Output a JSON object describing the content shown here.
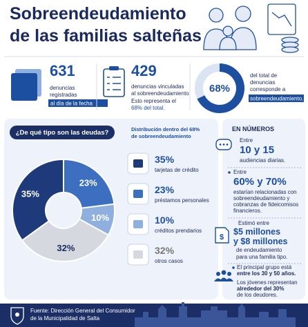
{
  "header": {
    "title_lines": [
      "Sobreendeudamiento",
      "de las familias salteñas"
    ]
  },
  "stats": [
    {
      "value": "631",
      "lines": [
        "denuncias",
        "registradas"
      ],
      "highlight": "al día de la fecha"
    },
    {
      "value": "429",
      "lines": [
        "denuncias vinculadas",
        "al sobreendeudamiento.",
        "Esto representa el"
      ],
      "highlight": "68% del total."
    },
    {
      "percent": 68,
      "label": "68%",
      "lines": [
        "del total de",
        "denuncias",
        "corresponde a"
      ],
      "highlight": "sobreendeudamiento."
    }
  ],
  "chart_data": {
    "type": "pie",
    "title": "¿De qué tipo son las deudas?",
    "subtitle": [
      "Distribución dentro del 68%",
      "de sobreendeudamiento"
    ],
    "categories": [
      "tarjetas de crédito",
      "préstamos personales",
      "créditos prendarios",
      "otros casos"
    ],
    "values": [
      35,
      23,
      10,
      32
    ],
    "value_labels": [
      "35%",
      "23%",
      "10%",
      "32%"
    ],
    "colors": [
      "#1e3a7b",
      "#3d6fc0",
      "#8fb0de",
      "#d5d8de"
    ]
  },
  "numbers": {
    "title": "EN NÚMEROS",
    "items": [
      {
        "pre": "Entre",
        "big": [
          "10 y 15"
        ],
        "post": [
          "audiencias diarias."
        ]
      },
      {
        "pre": "Entre",
        "big": [
          "60% y 70%"
        ],
        "post": [
          "estarían relacionadas con",
          "sobreendeudamiento y",
          "cobranzas de fideicomisos",
          "financieros."
        ]
      },
      {
        "pre": "Estimó entre",
        "big": [
          "$5 millones",
          "y $8 millones"
        ],
        "post": [
          "de endeudamiento",
          "para una familia tipo."
        ]
      },
      {
        "pre": "El principal grupo está",
        "big": [
          "entre los 30 y 50 años."
        ],
        "post": [
          "Los jóvenes representan",
          "alrededor del 30%",
          "de los deudores."
        ]
      }
    ]
  },
  "footer": {
    "lines": [
      "Fuente: Dirección General del Consumidor",
      "de la Municipalidad de Salta"
    ]
  }
}
